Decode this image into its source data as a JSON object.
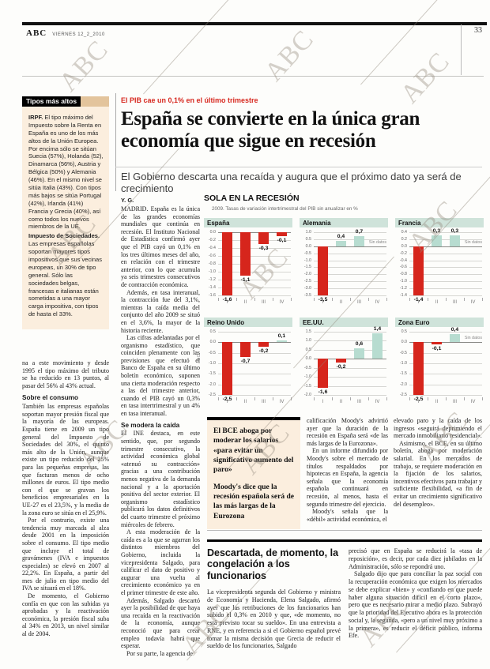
{
  "page": {
    "brand": "ABC",
    "date": "VIERNES 12_2_2010",
    "page_number": "33",
    "watermark": "ABC"
  },
  "sidebar": {
    "title": "Tipos más altos",
    "paragraphs": [
      {
        "lead": "IRPF.",
        "text": " El tipo máximo del Impuesto sobre la Renta en España es uno de los más altos de la Unión Europea. Por encima sólo se sitúan Suecia (57%), Holanda (52), Dinamarca (56%), Austria y Bélgica (50%) y Alemania (46%). En el mismo nivel se sitúa Italia (43%). Con tipos más bajos se sitúa Portugal (42%), Irlanda (41%) Francia y Grecia (40%), así como todos los nuevos miembros de la UE."
      },
      {
        "lead": "Impuesto de Sociedades.",
        "text": " Las empresas españolas soportan mayores tipos impositivos que sus vecinas europeas, un 30% de tipo general. Sólo las sociedades belgas, francesas e italianas están sometidas a una mayor carga impositiva, con tipos de hasta el 33%."
      }
    ]
  },
  "left_column": {
    "cont": "na a este movimiento y desde 1995 el tipo máximo del tributo se ha reducido en 13 puntos, al pasar del 56% al 43% actual.",
    "subhead": "Sobre el consumo",
    "paras": [
      "También las empresas españolas soportan mayor presión fiscal que la mayoría de las europeas. España tiene en 2009 un tipo general del Impuesto de Sociedades del 30%, el quinto más alto de la Unión, aunque existe un tipo reducido del 25% para las pequeñas empresas, las que facturan menos de ocho millones de euros. El tipo medio con el que se gravan los beneficios empresariales en la UE-27 es el 23,5%, y la media de la zona euro se sitúa en el 25,9%.",
      "Por el contrario, existe una tendencia muy marcada al alza desde 2001 en la imposición sobre el consumo. El tipo medio que incluye el total de gravámenes (IVA e impuestos especiales) se elevó en 2007 al 22,2%. En España, a partir del mes de julio en tipo medio del IVA se situará en el 18%.",
      "De momento, el Gobierno confía en que con las subidas ya aprobadas y la reactivación económica, la presión fiscal suba al 34% en 2013, un nivel similar al de 2004."
    ]
  },
  "article": {
    "kicker": "El PIB cae un 0,1% en el último trimestre",
    "headline": "España se convierte en la única gran economía que sigue en recesión",
    "subhead": "El Gobierno descarta una recaída y augura que el próximo dato ya será de crecimiento",
    "byline": "Y. G.",
    "col1_paras_a": [
      "MADRID. España es la única de las grandes economías mundiales que continúa en recesión. El Instituto Nacional de Estadística confirmó ayer que el PIB cayó un 0,1% en los tres últimos meses del año, en relación con el trimestre anterior, con lo que acumula ya seis trimestres consecutivos de contracción económica.",
      "Además, en tasa interanual, la contracción fue del 3,1%, mientras la caída media del conjunto del año 2009 se situó en el 3,6%, la mayor de la historia reciente.",
      "Las cifras adelantadas por el organismo estadístico, que coinciden plenamente con las previsiones que efectuó el Banco de España en su último boletín económico, suponen una cierta moderación respecto a las del trimestre anterior, cuando el PIB cayó un 0,3% en tasa intertrimestral y un 4% en tasa interanual."
    ],
    "col1_subhead": "Se modera la caída",
    "col1_paras_b": [
      "El INE destaca, en este sentido, que, por segundo trimestre consecutivo, la actividad económica global «atenuó su contracción» gracias a una contribución menos negativa de la demanda nacional y a la aportación positiva del sector exterior. El organismo estadístico publicará los datos definitivos del cuarto trimestre el próximo miércoles de febrero.",
      "A esta moderación de la caída es a la que se agarran los distintos miembros del Gobierno, incluida la vicepresidenta Salgado, para calificar el dato de positivo y augurar una vuelta al crecimiento económico ya en el primer trimestre de este año.",
      "Además, Salgado descartó ayer la posibilidad de que haya una recaída en la reactivación de la economía, aunque reconoció que para crear empleo todavía habrá que esperar.",
      "Por su parte, la agencia de"
    ],
    "col3_paras": [
      "calificación Moody's advirtió ayer que la duración de la recesión en España será «de las más largas de la Eurozona».",
      "En un informe difundido por Moody's sobre el mercado de títulos respaldados por hipotecas en España, la agencia señala que la economía española continuará en recesión, al menos, hasta el segundo trimestre del ejercicio.",
      "Moody's señala que la «débil» actividad económica, el"
    ],
    "col4_paras": [
      "elevado paro y la caída de los ingresos «seguirá deprimiendo el mercado inmobiliario residencial».",
      "Asimismo, el BCE, en su último boletín, aboga por moderación salarial. En los mercados de trabajo, se requiere moderación en la fijación de los salarios, incentivos efectivos para trabajar y suficiente flexibilidad, «a fin de evitar un crecimiento significativo del desempleo»."
    ]
  },
  "quote_box": {
    "paras": [
      "El BCE aboga por moderar los salarios «para evitar un significativo aumento del paro»",
      "Moody's dice que la recesión española será de las más largas de la Eurozona"
    ]
  },
  "chart_block": {
    "title": "SOLA EN LA RECESIÓN",
    "subtitle": "2009. Tasas de variación intertrimestral del PIB sin anualizar en %",
    "source": "ABC",
    "no_data_text": "Sin datos",
    "colors": {
      "negative": "#d6251c",
      "positive": "#b7dcd0",
      "header_band": "#cfe3da"
    }
  },
  "chart_data": [
    {
      "type": "bar",
      "name": "España",
      "categories": [
        "I",
        "II",
        "III",
        "IV"
      ],
      "values": [
        -1.6,
        -1.1,
        -0.3,
        -0.1
      ],
      "labels": [
        "-1,6",
        "-1,1",
        "-0,3",
        "-0,1"
      ],
      "ymax": 0.0,
      "ymin": -1.6,
      "ystep": 0.2,
      "missing": []
    },
    {
      "type": "bar",
      "name": "Alemania",
      "categories": [
        "I",
        "II",
        "III",
        "IV"
      ],
      "values": [
        -3.5,
        0.4,
        0.7,
        null
      ],
      "labels": [
        "-3,5",
        "0,4",
        "0,7",
        ""
      ],
      "ymax": 1.0,
      "ymin": -3.5,
      "ystep": 0.5,
      "missing": [
        3
      ]
    },
    {
      "type": "bar",
      "name": "Francia",
      "categories": [
        "I",
        "II",
        "III",
        "IV"
      ],
      "values": [
        -1.4,
        0.3,
        0.3,
        null
      ],
      "labels": [
        "-1,4",
        "0,3",
        "0,3",
        ""
      ],
      "ymax": 0.4,
      "ymin": -1.4,
      "ystep": 0.2,
      "missing": [
        3
      ]
    },
    {
      "type": "bar",
      "name": "Reino Unido",
      "categories": [
        "I",
        "II",
        "III",
        "IV"
      ],
      "values": [
        -2.5,
        -0.7,
        -0.2,
        0.1
      ],
      "labels": [
        "-2,5",
        "-0,7",
        "-0,2",
        "0,1"
      ],
      "ymax": 0.5,
      "ymin": -2.5,
      "ystep": 0.5,
      "missing": []
    },
    {
      "type": "bar",
      "name": "EE.UU.",
      "categories": [
        "I",
        "II",
        "III",
        "IV"
      ],
      "values": [
        -1.6,
        -0.2,
        0.6,
        1.4
      ],
      "labels": [
        "-1,6",
        "-0,2",
        "0,6",
        "1,4"
      ],
      "ymax": 1.5,
      "ymin": -2.0,
      "ystep": 0.5,
      "missing": []
    },
    {
      "type": "bar",
      "name": "Zona Euro",
      "categories": [
        "I",
        "II",
        "III",
        "IV"
      ],
      "values": [
        -2.5,
        -0.1,
        0.4,
        null
      ],
      "labels": [
        "-2,5",
        "-0,1",
        "0,4",
        ""
      ],
      "ymax": 0.5,
      "ymin": -2.5,
      "ystep": 0.5,
      "missing": [
        3
      ]
    }
  ],
  "bottom_article": {
    "headline": "Descartada, de momento, la congelación a los funcionarios",
    "left_paras": [
      "La vicepresidenta segunda del Gobierno y ministra de Economía y Hacienda, Elena Salgado, afirmó ayer que las retribuciones de los funcionarios han subido el 0,3% en 2010 y que, «de momento, no está previsto tocar su sueldo». En una entrevista a RNE, y en referencia a si el Gobierno español prevé tomar la misma decisión que Grecia de reducir el sueldo de los funcionarios, Salgado"
    ],
    "right_paras": [
      "precisó que en España se reducirá la «tasa de reposición», es decir, por cada diez jubilados en la Administración, sólo se repondrá uno.",
      "Salgado dijo que para conciliar la paz social con la recuperación económica que exigen los mercados se debe explicar «bien» y «confiando en que puede haber alguna situación difícil en el corto plazo», pero que es necesario mirar a medio plazo. Subrayó que la prioridad del Ejecutivo ahora es la protección social y, la segunda, «pero a un nivel muy próximo a la primera», es reducir el déficit público, informa Efe."
    ]
  }
}
